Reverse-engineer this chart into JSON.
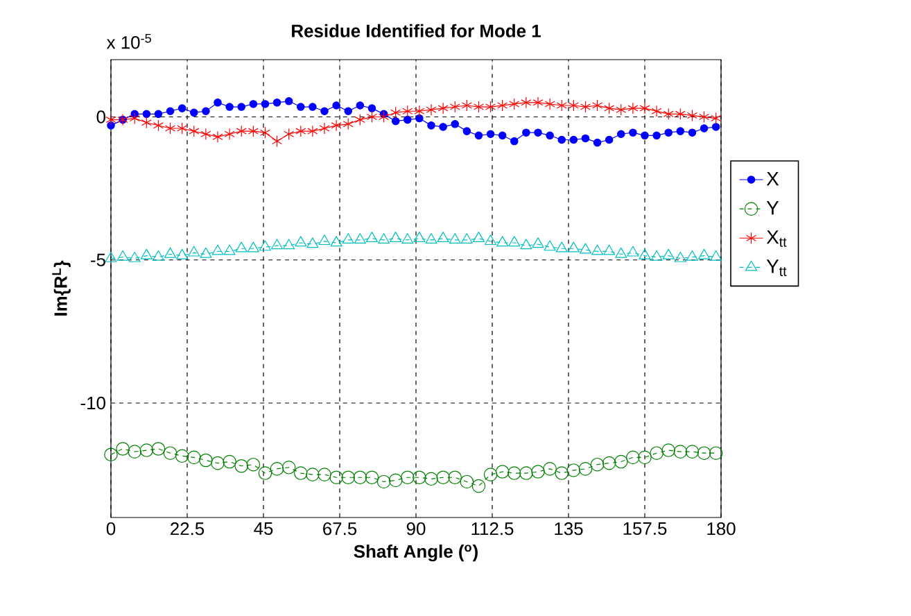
{
  "chart_data": {
    "type": "line",
    "title": "Residue Identified for Mode 1",
    "xlabel": "Shaft Angle ($^{o}$)",
    "ylabel": "Im{R$^{L}$}",
    "annotations": [
      "x 10$^{-5}$"
    ],
    "x": [
      0,
      3.5,
      7,
      10.5,
      14,
      17.5,
      21,
      24.5,
      28,
      31.5,
      35,
      38.5,
      42,
      45.5,
      49,
      52.5,
      56,
      59.5,
      63,
      66.5,
      70,
      73.5,
      77,
      80.5,
      84,
      87.5,
      91,
      94.5,
      98,
      101.5,
      105,
      108.5,
      112,
      115.5,
      119,
      122.5,
      126,
      129.5,
      133,
      136.5,
      140,
      143.5,
      147,
      150.5,
      154,
      157.5,
      161,
      164.5,
      168,
      171.5,
      175,
      178.5
    ],
    "series": [
      {
        "name": "X",
        "color": "#0000ff",
        "marker": "circle",
        "line_style": "solid",
        "values": [
          -0.3,
          -0.1,
          0.1,
          0.1,
          0.1,
          0.2,
          0.3,
          0.15,
          0.2,
          0.5,
          0.35,
          0.35,
          0.45,
          0.45,
          0.5,
          0.55,
          0.35,
          0.35,
          0.2,
          0.4,
          0.2,
          0.4,
          0.3,
          0.1,
          -0.15,
          -0.1,
          -0.05,
          -0.3,
          -0.35,
          -0.25,
          -0.5,
          -0.65,
          -0.6,
          -0.65,
          -0.85,
          -0.55,
          -0.55,
          -0.65,
          -0.8,
          -0.8,
          -0.75,
          -0.9,
          -0.8,
          -0.6,
          -0.55,
          -0.65,
          -0.65,
          -0.55,
          -0.5,
          -0.55,
          -0.4,
          -0.35
        ]
      },
      {
        "name": "Y",
        "color": "#008000",
        "marker": "circle",
        "line_style": "dashed",
        "values": [
          -11.8,
          -11.6,
          -11.7,
          -11.65,
          -11.6,
          -11.75,
          -11.85,
          -11.9,
          -12.0,
          -12.1,
          -12.05,
          -12.2,
          -12.15,
          -12.45,
          -12.3,
          -12.25,
          -12.45,
          -12.5,
          -12.5,
          -12.6,
          -12.6,
          -12.6,
          -12.6,
          -12.75,
          -12.7,
          -12.6,
          -12.6,
          -12.65,
          -12.6,
          -12.6,
          -12.75,
          -12.9,
          -12.5,
          -12.4,
          -12.45,
          -12.45,
          -12.4,
          -12.3,
          -12.45,
          -12.35,
          -12.3,
          -12.15,
          -12.1,
          -12.05,
          -11.9,
          -11.9,
          -11.75,
          -11.65,
          -11.7,
          -11.7,
          -11.75,
          -11.75
        ]
      },
      {
        "name": "X$_{tt}$",
        "color": "#ff0000",
        "marker": "cross",
        "line_style": "solid",
        "values": [
          -0.1,
          -0.1,
          -0.05,
          -0.2,
          -0.3,
          -0.4,
          -0.4,
          -0.5,
          -0.6,
          -0.7,
          -0.6,
          -0.5,
          -0.5,
          -0.55,
          -0.85,
          -0.6,
          -0.5,
          -0.5,
          -0.4,
          -0.3,
          -0.25,
          -0.1,
          0,
          0,
          0.15,
          0.2,
          0.2,
          0.25,
          0.3,
          0.35,
          0.4,
          0.35,
          0.35,
          0.4,
          0.45,
          0.5,
          0.5,
          0.45,
          0.4,
          0.4,
          0.35,
          0.4,
          0.3,
          0.25,
          0.3,
          0.3,
          0.2,
          0.1,
          0.1,
          0.05,
          0,
          -0.05
        ]
      },
      {
        "name": "Y$_{tt}$",
        "color": "#00bfbf",
        "marker": "triangle",
        "line_style": "dashed",
        "values": [
          -4.95,
          -4.9,
          -4.95,
          -4.85,
          -4.9,
          -4.8,
          -4.85,
          -4.75,
          -4.8,
          -4.7,
          -4.7,
          -4.6,
          -4.6,
          -4.55,
          -4.5,
          -4.5,
          -4.4,
          -4.45,
          -4.35,
          -4.4,
          -4.3,
          -4.3,
          -4.25,
          -4.3,
          -4.25,
          -4.3,
          -4.25,
          -4.3,
          -4.25,
          -4.3,
          -4.3,
          -4.25,
          -4.35,
          -4.4,
          -4.4,
          -4.5,
          -4.45,
          -4.55,
          -4.6,
          -4.6,
          -4.65,
          -4.7,
          -4.7,
          -4.8,
          -4.75,
          -4.85,
          -4.9,
          -4.85,
          -4.95,
          -4.9,
          -4.85,
          -4.9
        ]
      }
    ],
    "xlim": [
      0,
      180
    ],
    "xticks": [
      0,
      22.5,
      45,
      67.5,
      90,
      112.5,
      135,
      157.5,
      180
    ],
    "ylim": [
      -14,
      2
    ],
    "yticks": [
      -10,
      -5,
      0
    ],
    "grid": true,
    "legend": "right"
  }
}
